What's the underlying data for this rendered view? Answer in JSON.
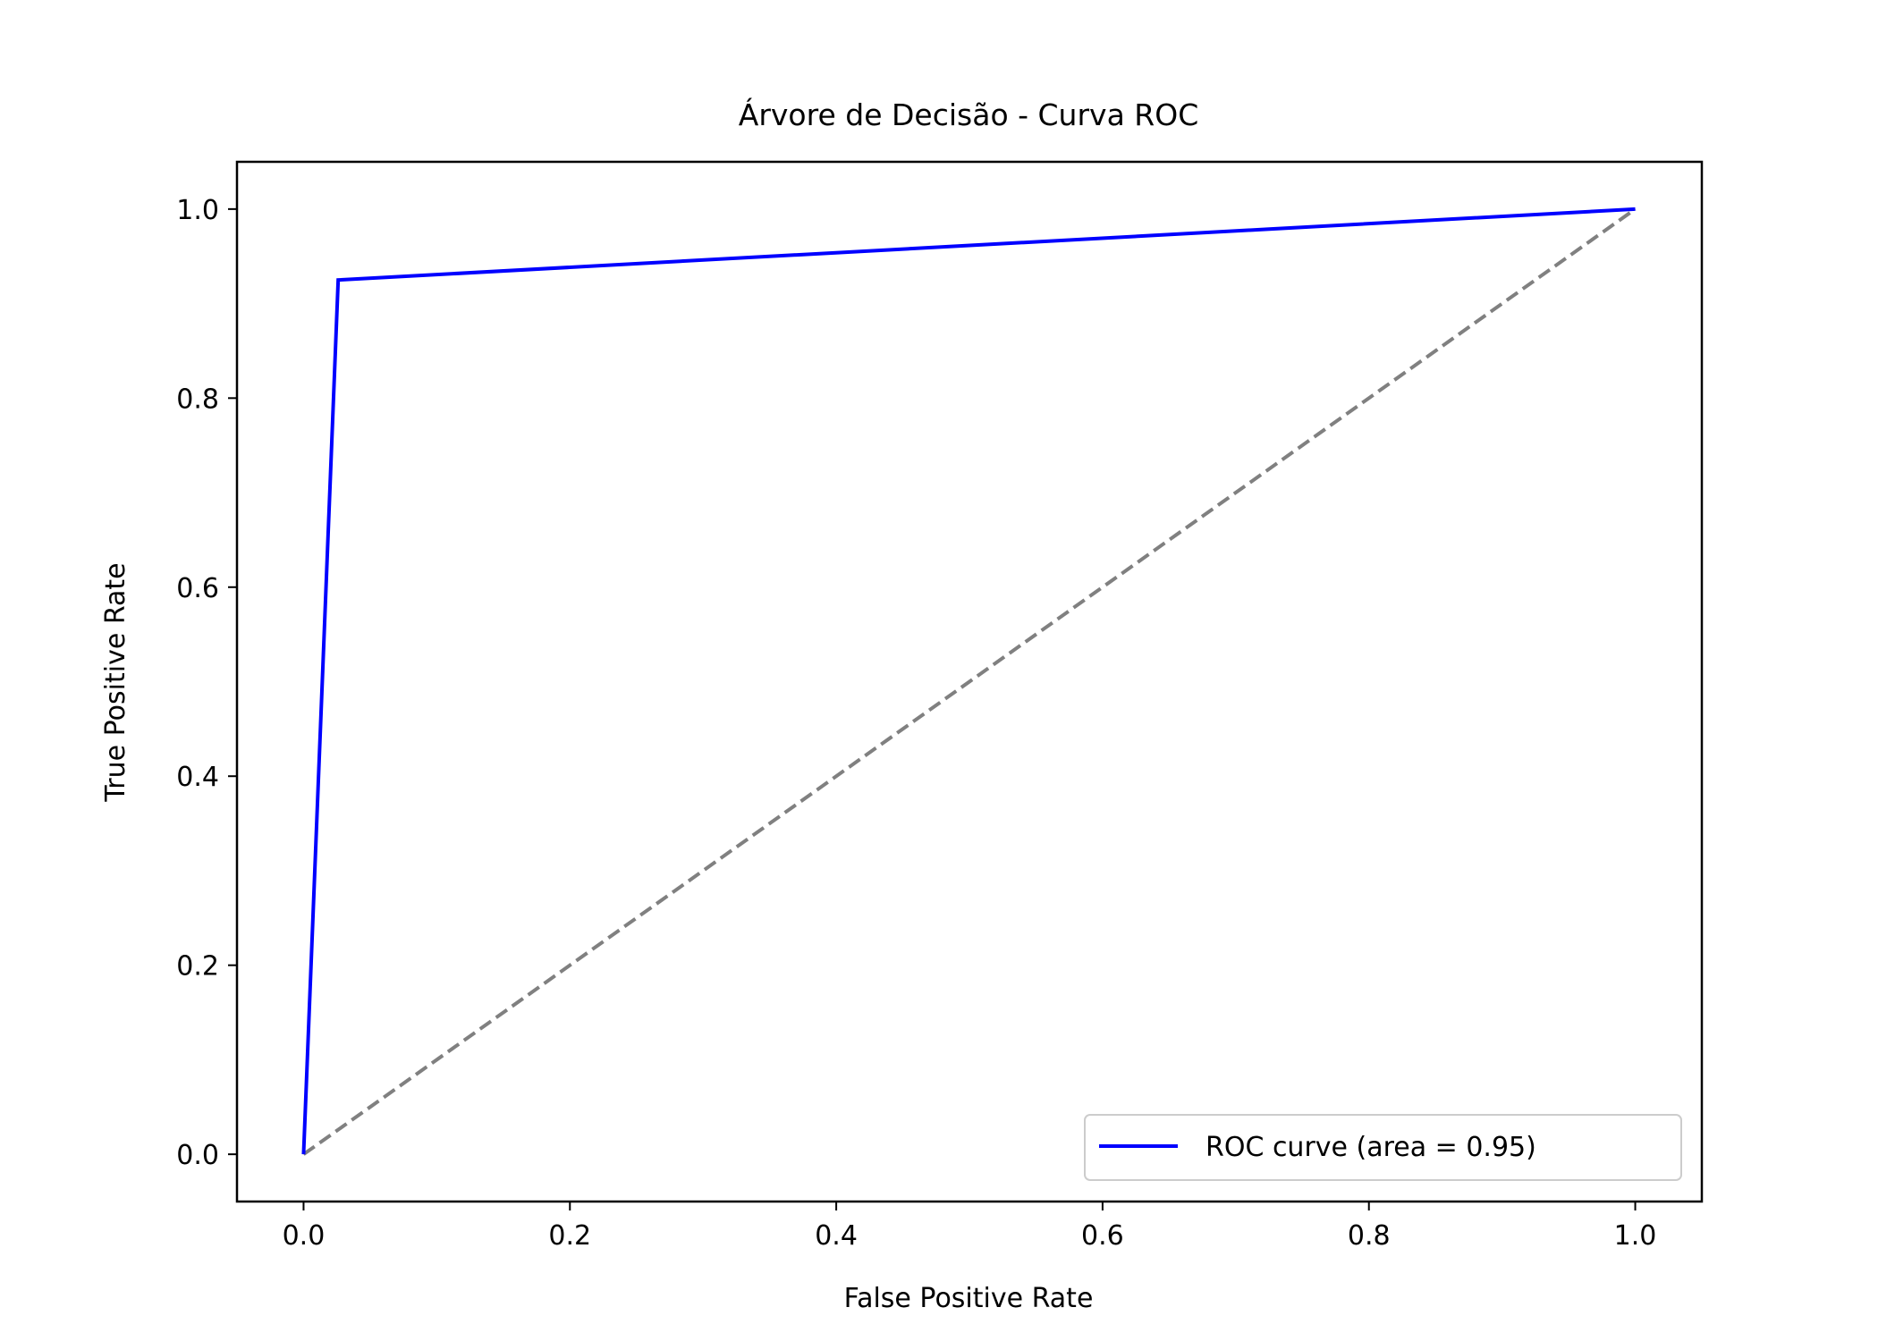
{
  "chart_data": {
    "type": "line",
    "title": "Árvore de Decisão - Curva ROC",
    "xlabel": "False Positive Rate",
    "ylabel": "True Positive Rate",
    "xlim": [
      -0.05,
      1.05
    ],
    "ylim": [
      -0.05,
      1.05
    ],
    "x_ticks": [
      0.0,
      0.2,
      0.4,
      0.6,
      0.8,
      1.0
    ],
    "y_ticks": [
      0.0,
      0.2,
      0.4,
      0.6,
      0.8,
      1.0
    ],
    "x_tick_labels": [
      "0.0",
      "0.2",
      "0.4",
      "0.6",
      "0.8",
      "1.0"
    ],
    "y_tick_labels": [
      "0.0",
      "0.2",
      "0.4",
      "0.6",
      "0.8",
      "1.0"
    ],
    "grid": false,
    "legend_position": "lower right",
    "series": [
      {
        "name": "ROC curve (area = 0.95)",
        "color": "#0000ff",
        "style": "solid",
        "x": [
          0.0,
          0.026,
          1.0
        ],
        "y": [
          0.0,
          0.925,
          1.0
        ]
      },
      {
        "color": "#808080",
        "style": "dashed",
        "x": [
          0.0,
          1.0
        ],
        "y": [
          0.0,
          1.0
        ]
      }
    ]
  }
}
